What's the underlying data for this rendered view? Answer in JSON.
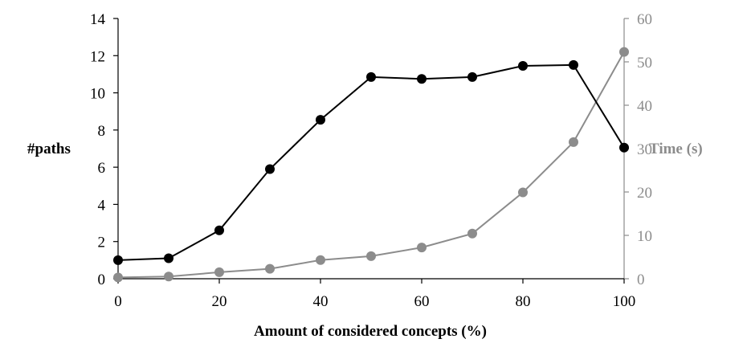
{
  "chart_data": {
    "type": "line",
    "title": "",
    "xlabel": "Amount of considered concepts (%)",
    "ylabel_left": "#paths",
    "ylabel_right": "Time (s)",
    "x": [
      0,
      10,
      20,
      30,
      40,
      50,
      60,
      70,
      80,
      90,
      100
    ],
    "xlim": [
      0,
      100
    ],
    "xticks": [
      0,
      20,
      40,
      60,
      80,
      100
    ],
    "ylim_left": [
      0,
      14
    ],
    "yticks_left": [
      0,
      2,
      4,
      6,
      8,
      10,
      12,
      14
    ],
    "ylim_right": [
      0,
      60
    ],
    "yticks_right": [
      0,
      10,
      20,
      30,
      40,
      50,
      60
    ],
    "grid": false,
    "legend": "none",
    "series": [
      {
        "axis": "left",
        "color": "#000000",
        "values": [
          1.0,
          1.1,
          2.6,
          5.9,
          8.55,
          10.85,
          10.75,
          10.85,
          11.45,
          11.5,
          7.05
        ]
      },
      {
        "axis": "right",
        "color": "#8c8c8c",
        "values": [
          0.3,
          0.5,
          1.5,
          2.3,
          4.3,
          5.2,
          7.2,
          10.4,
          19.9,
          31.5,
          52.3
        ]
      }
    ]
  }
}
